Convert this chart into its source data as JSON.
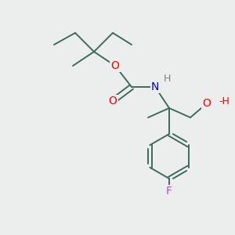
{
  "background_color": "#eceeee",
  "bond_color": "#3d6b5e",
  "atom_colors": {
    "O": "#ff0000",
    "N": "#0000cc",
    "F": "#cc44cc",
    "H_gray": "#808080"
  },
  "line_width": 1.4,
  "fig_size": [
    3.0,
    3.0
  ],
  "dpi": 100
}
